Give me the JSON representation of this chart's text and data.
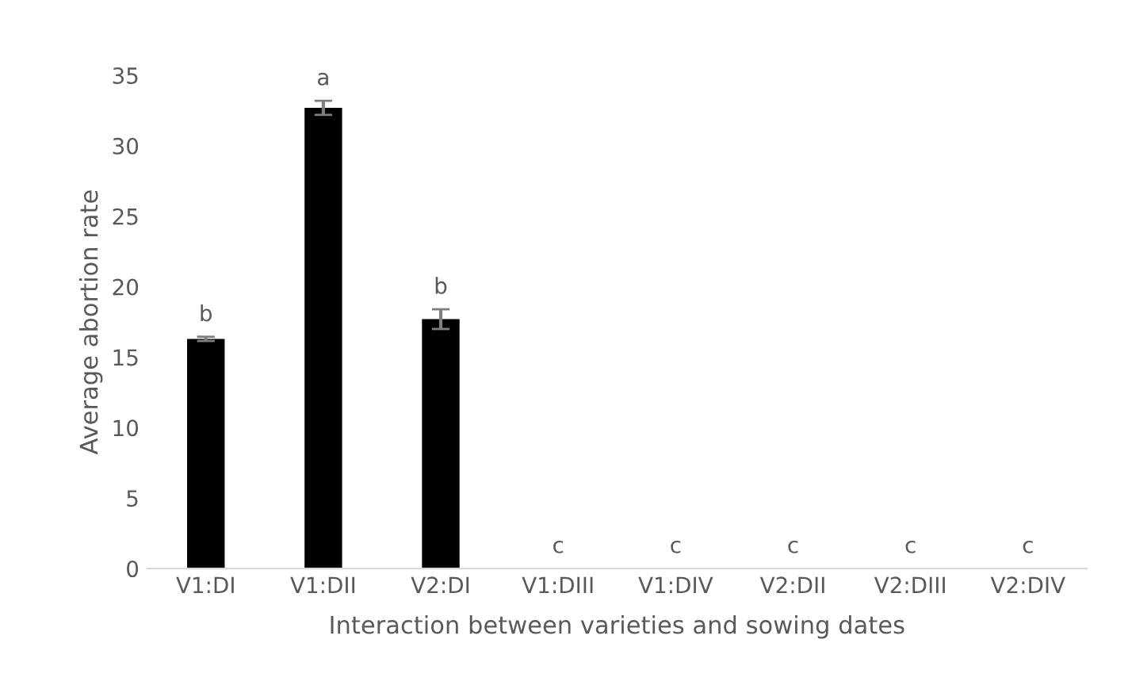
{
  "chart_data": {
    "type": "bar",
    "xlabel": "Interaction between varieties and sowing dates",
    "ylabel": "Average abortion rate",
    "categories": [
      "V1:DI",
      "V1:DII",
      "V2:DI",
      "V1:DIII",
      "V1:DIV",
      "V2:DII",
      "V2:DIII",
      "V2:DIV"
    ],
    "values": [
      16.3,
      32.7,
      17.7,
      0,
      0,
      0,
      0,
      0
    ],
    "errors": [
      0.15,
      0.5,
      0.7,
      null,
      null,
      null,
      null,
      null
    ],
    "value_labels": [
      "b",
      "a",
      "b",
      "c",
      "c",
      "c",
      "c",
      "c"
    ],
    "color": "#000000",
    "ylim": [
      0,
      35
    ],
    "yticks": [
      0,
      5,
      10,
      15,
      20,
      25,
      30,
      35
    ],
    "grid": false
  }
}
